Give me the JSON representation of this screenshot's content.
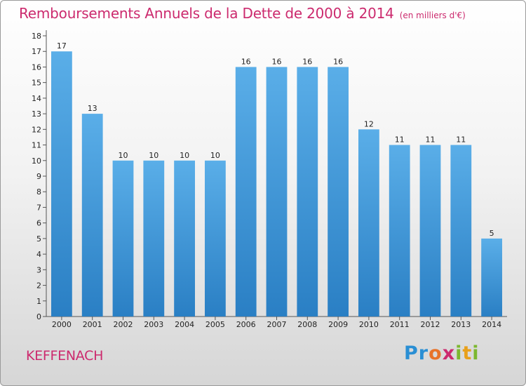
{
  "title": "Remboursements Annuels de la Dette de 2000 à 2014",
  "unit": "(en milliers d'€)",
  "commune": "KEFFENACH",
  "logo": {
    "letters": [
      "P",
      "r",
      "o",
      "x",
      "i",
      "t",
      "i"
    ],
    "colors": [
      "#2a8fd4",
      "#2a8fd4",
      "#e8732a",
      "#cc2a6e",
      "#7cb82f",
      "#e8a01a",
      "#7cb82f"
    ]
  },
  "colors": {
    "bar_top": "#5aaee8",
    "bar_bottom": "#2a7fc4",
    "title": "#cc2a6e"
  },
  "chart_data": {
    "type": "bar",
    "categories": [
      "2000",
      "2001",
      "2002",
      "2003",
      "2004",
      "2005",
      "2006",
      "2007",
      "2008",
      "2009",
      "2010",
      "2011",
      "2012",
      "2013",
      "2014"
    ],
    "values": [
      17,
      13,
      10,
      10,
      10,
      10,
      16,
      16,
      16,
      16,
      12,
      11,
      11,
      11,
      5
    ],
    "ylim": [
      0,
      18
    ],
    "yticks": [
      0,
      1,
      2,
      3,
      4,
      5,
      6,
      7,
      8,
      9,
      10,
      11,
      12,
      13,
      14,
      15,
      16,
      17,
      18
    ],
    "grid": false
  }
}
